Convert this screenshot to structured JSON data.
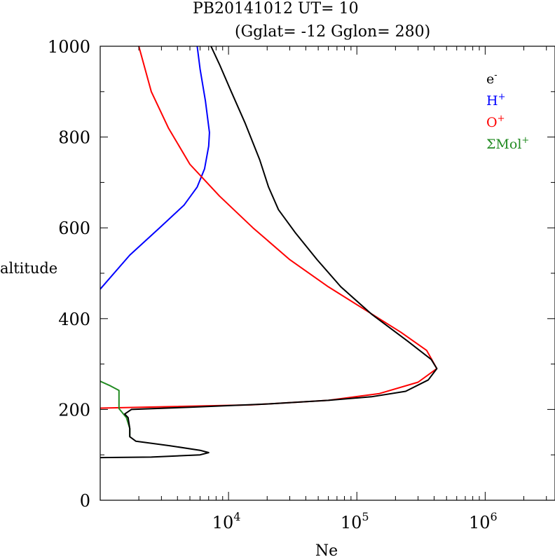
{
  "chart_data": {
    "type": "line",
    "title": "PB20141012   UT=  10",
    "subtitle": "(Gglat= -12   Gglon=  280)",
    "xlabel": "Ne",
    "ylabel": "altitude",
    "x_scale": "log",
    "xlim": [
      1000,
      3500000
    ],
    "ylim": [
      0,
      1000
    ],
    "x_ticks": [
      {
        "value": 10000,
        "base": "10",
        "exp": "4"
      },
      {
        "value": 100000,
        "base": "10",
        "exp": "5"
      },
      {
        "value": 1000000,
        "base": "10",
        "exp": "6"
      }
    ],
    "y_ticks": [
      {
        "value": 0,
        "label": "0"
      },
      {
        "value": 200,
        "label": "200"
      },
      {
        "value": 400,
        "label": "400"
      },
      {
        "value": 600,
        "label": "600"
      },
      {
        "value": 800,
        "label": "800"
      },
      {
        "value": 1000,
        "label": "1000"
      }
    ],
    "legend": {
      "placement": "top-right",
      "entries": [
        {
          "key": "e",
          "base": "e",
          "sup": "-",
          "color": "#000000"
        },
        {
          "key": "h",
          "base": "H",
          "sup": "+",
          "color": "#0000ff"
        },
        {
          "key": "o",
          "base": "O",
          "sup": "+",
          "color": "#ff0000"
        },
        {
          "key": "mol",
          "base": "ΣMol",
          "sup": "+",
          "color": "#228b22"
        }
      ]
    },
    "series": [
      {
        "name": "H+",
        "color": "#0000ff",
        "points": [
          [
            1000,
            465
          ],
          [
            1700,
            540
          ],
          [
            2900,
            600
          ],
          [
            4500,
            650
          ],
          [
            5700,
            690
          ],
          [
            6500,
            730
          ],
          [
            7000,
            780
          ],
          [
            7100,
            810
          ],
          [
            6600,
            880
          ],
          [
            6000,
            950
          ],
          [
            5700,
            1000
          ]
        ]
      },
      {
        "name": "O+",
        "color": "#ff0000",
        "points": [
          [
            1000,
            203
          ],
          [
            15000,
            210
          ],
          [
            60000,
            220
          ],
          [
            150000,
            235
          ],
          [
            300000,
            260
          ],
          [
            420000,
            290
          ],
          [
            350000,
            330
          ],
          [
            220000,
            370
          ],
          [
            115000,
            420
          ],
          [
            60000,
            470
          ],
          [
            30000,
            530
          ],
          [
            15500,
            600
          ],
          [
            8500,
            670
          ],
          [
            5000,
            740
          ],
          [
            3400,
            820
          ],
          [
            2500,
            900
          ],
          [
            2000,
            1000
          ]
        ]
      },
      {
        "name": "ΣMol+",
        "color": "#228b22",
        "points": [
          [
            1000,
            262
          ],
          [
            1200,
            252
          ],
          [
            1400,
            242
          ],
          [
            1400,
            202
          ],
          [
            1600,
            182
          ],
          [
            1700,
            158
          ],
          [
            1700,
            140
          ]
        ]
      },
      {
        "name": "e-",
        "color": "#000000",
        "points": [
          [
            7300,
            1000
          ],
          [
            8500,
            960
          ],
          [
            10500,
            900
          ],
          [
            13500,
            830
          ],
          [
            17500,
            750
          ],
          [
            20500,
            690
          ],
          [
            24500,
            640
          ],
          [
            33000,
            590
          ],
          [
            49000,
            530
          ],
          [
            75000,
            470
          ],
          [
            130000,
            410
          ],
          [
            250000,
            350
          ],
          [
            380000,
            310
          ],
          [
            420000,
            290
          ],
          [
            360000,
            265
          ],
          [
            240000,
            240
          ],
          [
            130000,
            228
          ],
          [
            60000,
            220
          ],
          [
            20000,
            212
          ],
          [
            5000,
            205
          ],
          [
            1750,
            200
          ],
          [
            1550,
            190
          ],
          [
            1650,
            182
          ],
          [
            1700,
            158
          ],
          [
            1700,
            140
          ],
          [
            1900,
            130
          ],
          [
            3500,
            120
          ],
          [
            6000,
            110
          ],
          [
            7000,
            105
          ],
          [
            6000,
            100
          ],
          [
            2500,
            95
          ],
          [
            1000,
            94
          ]
        ]
      }
    ]
  }
}
